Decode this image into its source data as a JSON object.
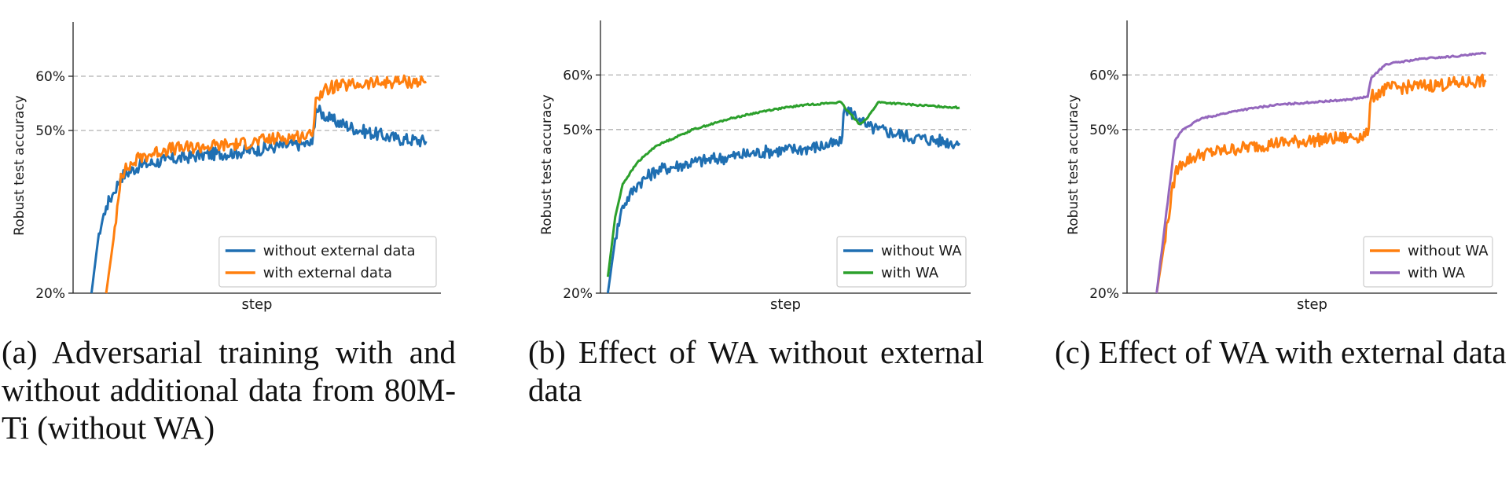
{
  "figure": {
    "captions": [
      "(a) Adversarial training with and without additional data from 80M-Ti (without WA)",
      "(b) Effect of WA without external data",
      "(c) Effect of WA with external data"
    ]
  },
  "colors": {
    "blue": "#1f6fb2",
    "orange": "#ff7f0e",
    "green": "#2ca02c",
    "purple": "#9467bd"
  },
  "chart_data": [
    {
      "type": "line",
      "title": "",
      "xlabel": "step",
      "ylabel": "Robust test accuracy",
      "yticks": [
        "20%",
        "50%",
        "60%"
      ],
      "ytick_values": [
        20,
        50,
        60
      ],
      "ylim": [
        20,
        70
      ],
      "xlim": [
        0,
        100
      ],
      "grid": "dashed horizontal at 50% and 60%",
      "legend_position": "lower-right",
      "x": [
        5,
        7,
        9,
        11,
        13,
        18,
        25,
        35,
        45,
        55,
        62,
        65,
        66,
        70,
        78,
        88,
        96
      ],
      "series": [
        {
          "name": "without external data",
          "color": "blue",
          "values": [
            20,
            31,
            36,
            38.5,
            41.5,
            43.5,
            44.5,
            45.5,
            46,
            47,
            47.5,
            47.5,
            54,
            52,
            50,
            48.5,
            48
          ]
        },
        {
          "name": "with external data",
          "color": "orange",
          "values": [
            null,
            null,
            20,
            30,
            42,
            45,
            46.5,
            47,
            47.5,
            48.5,
            49,
            49,
            56,
            58,
            58.5,
            59,
            59
          ]
        }
      ]
    },
    {
      "type": "line",
      "title": "",
      "xlabel": "step",
      "ylabel": "Robust test accuracy",
      "yticks": [
        "20%",
        "50%",
        "60%"
      ],
      "ytick_values": [
        20,
        50,
        60
      ],
      "ylim": [
        20,
        70
      ],
      "xlim": [
        0,
        100
      ],
      "grid": "dashed horizontal at 50% and 60%",
      "legend_position": "lower-right",
      "x": [
        2,
        4,
        6,
        10,
        15,
        25,
        35,
        45,
        55,
        65,
        66,
        70,
        72,
        75,
        85,
        97
      ],
      "series": [
        {
          "name": "without WA",
          "color": "blue",
          "values": [
            20,
            30,
            36,
            40,
            42.5,
            44,
            45,
            46,
            46.5,
            47.5,
            54,
            52,
            50.5,
            50,
            48.5,
            47.5
          ]
        },
        {
          "name": "with WA",
          "color": "green",
          "values": [
            23,
            34,
            40,
            44,
            47,
            50,
            52,
            53.5,
            54.5,
            55,
            54,
            51,
            52,
            55,
            54.5,
            54
          ]
        }
      ]
    },
    {
      "type": "line",
      "title": "",
      "xlabel": "step",
      "ylabel": "Robust test accuracy",
      "yticks": [
        "20%",
        "50%",
        "60%"
      ],
      "ytick_values": [
        20,
        50,
        60
      ],
      "ylim": [
        20,
        70
      ],
      "xlim": [
        0,
        100
      ],
      "grid": "dashed horizontal at 50% and 60%",
      "legend_position": "lower-right",
      "x": [
        8,
        13,
        15,
        20,
        30,
        40,
        50,
        60,
        65,
        66,
        70,
        80,
        90,
        97
      ],
      "series": [
        {
          "name": "without WA",
          "color": "orange",
          "values": [
            20,
            42,
            44,
            45.5,
            46.5,
            47.5,
            48,
            48.5,
            49,
            56,
            57.5,
            58,
            58.5,
            59
          ]
        },
        {
          "name": "with WA",
          "color": "purple",
          "values": [
            20,
            48,
            50,
            52,
            53.5,
            54.5,
            55,
            55.5,
            56,
            59.5,
            62,
            63,
            63.5,
            64
          ]
        }
      ]
    }
  ]
}
